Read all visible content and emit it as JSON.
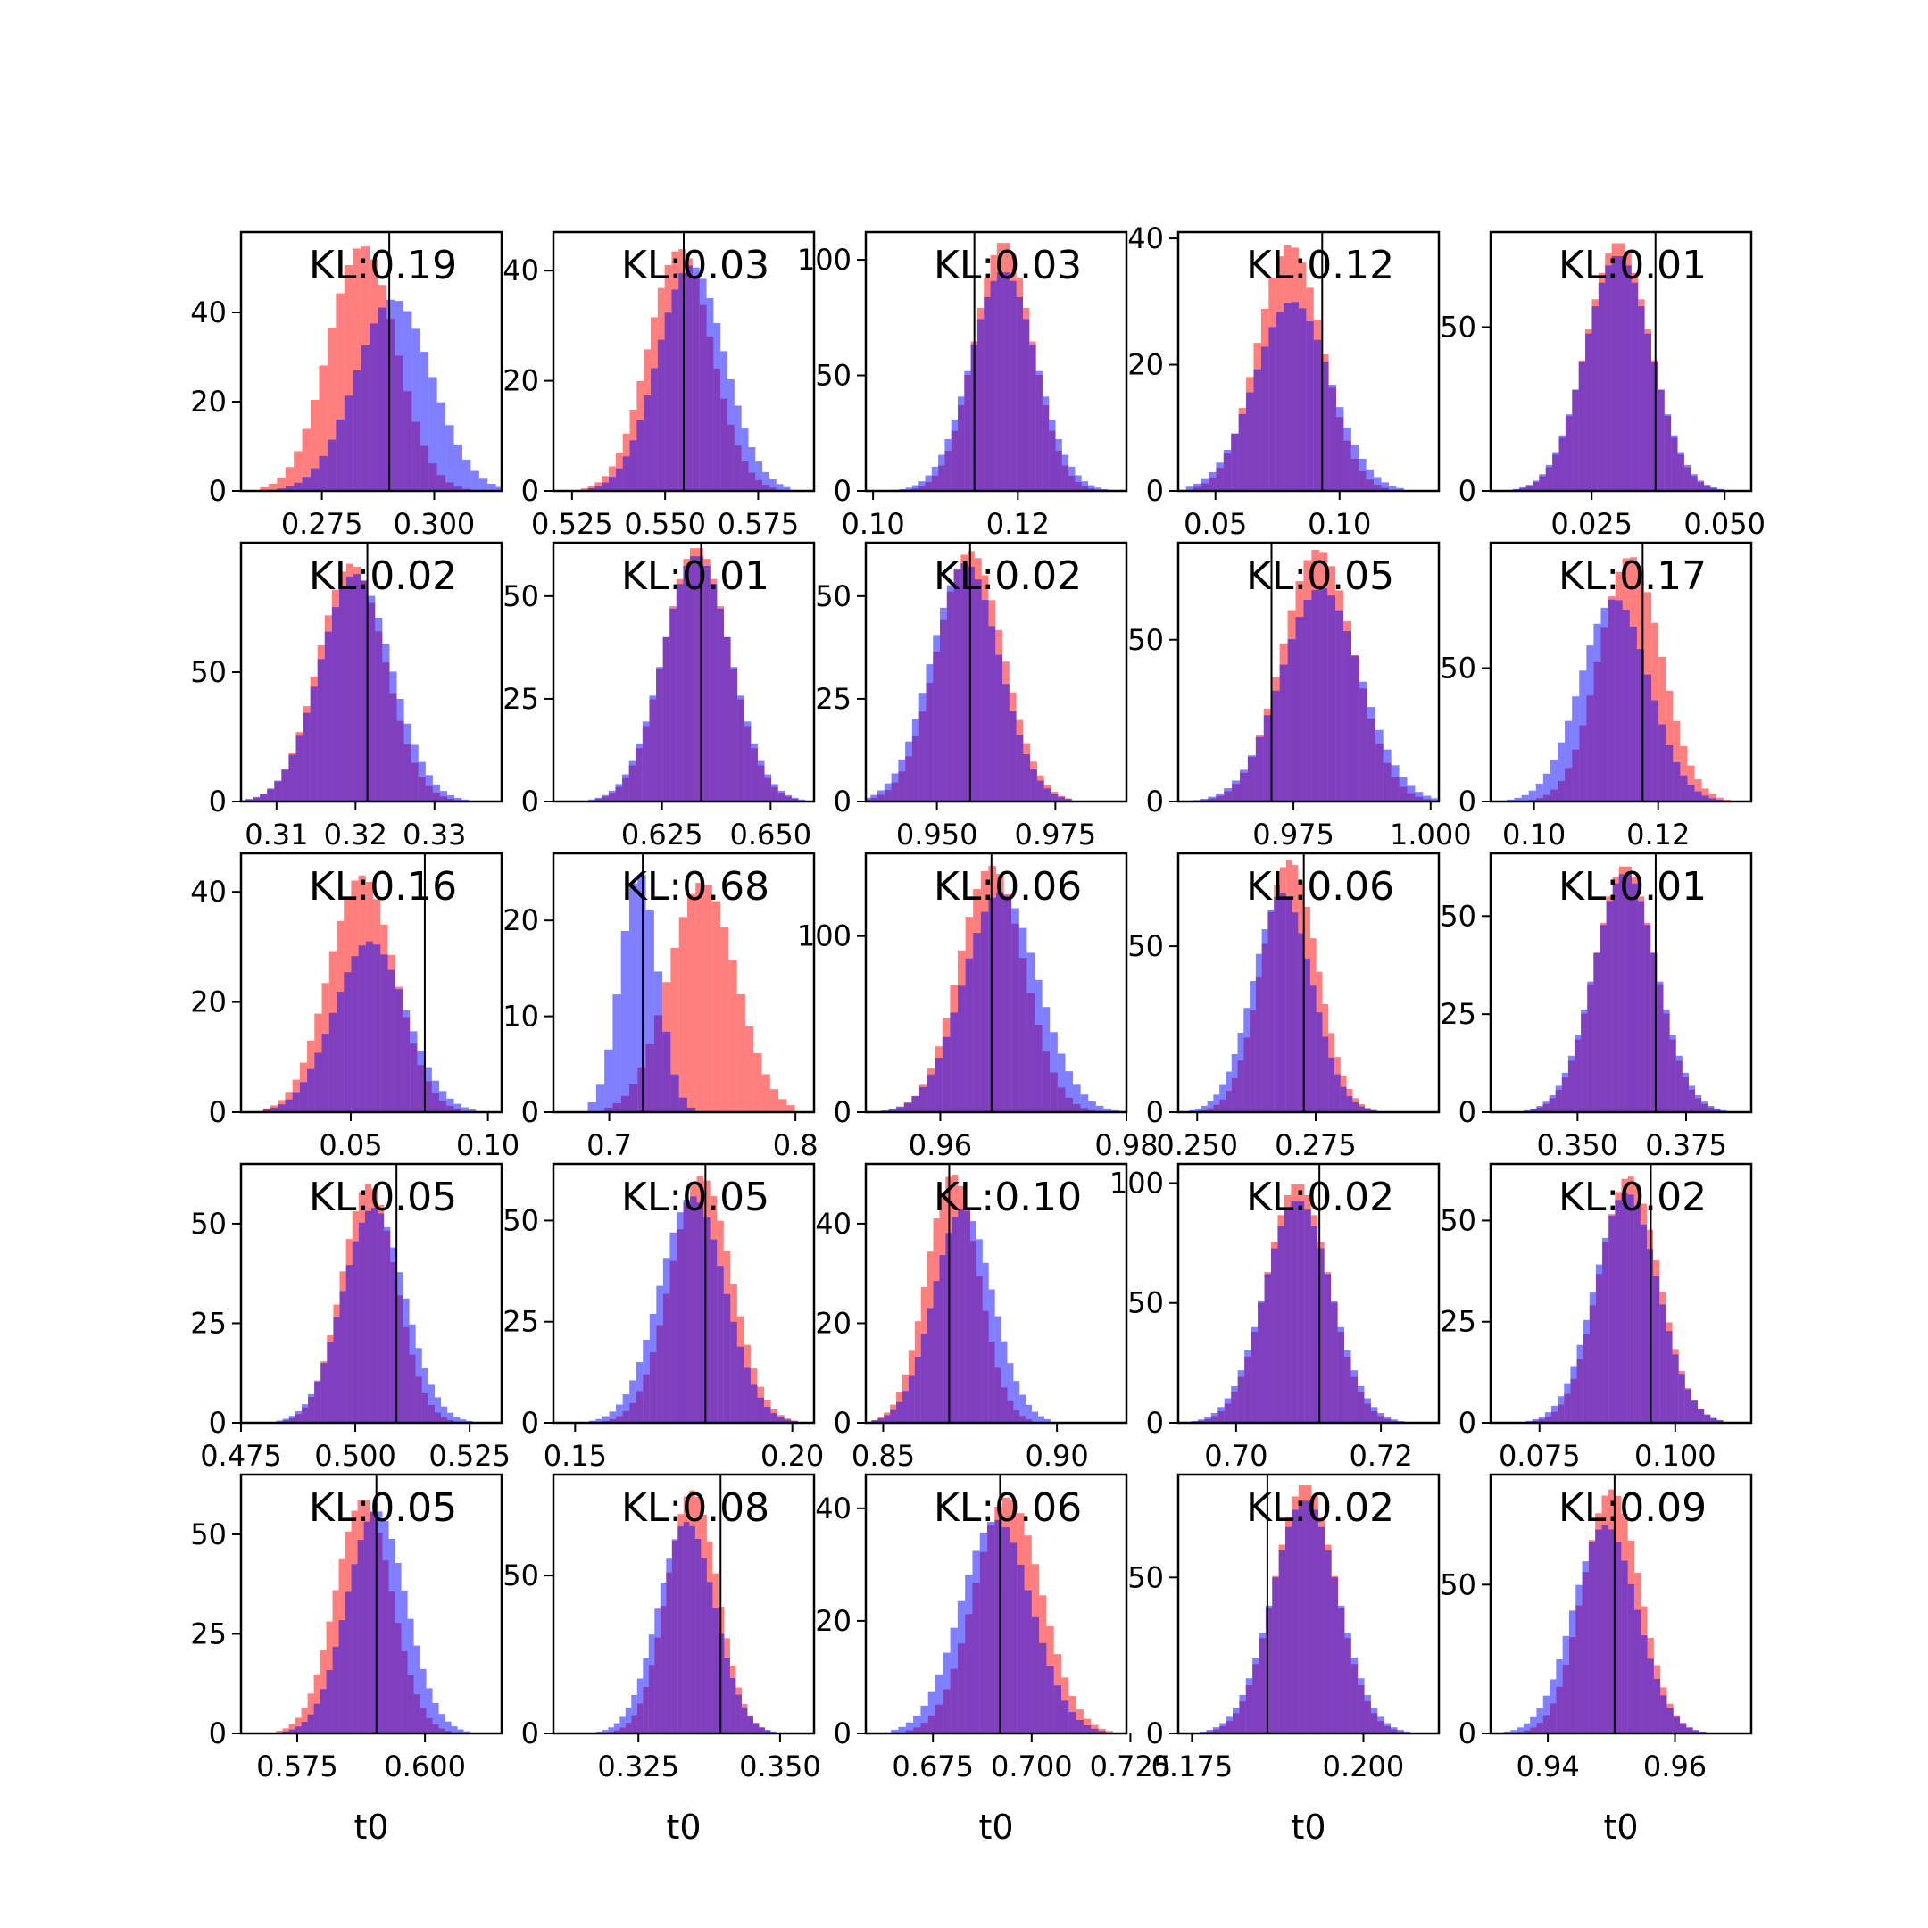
{
  "chart_data": {
    "type": "histogram-grid",
    "rows": 5,
    "cols": 5,
    "series_colors": {
      "red": "#ff0000",
      "blue": "#0000ff",
      "overlap": "#7f3fbf"
    },
    "truth_line_color": "#000000",
    "xlabel": "t0",
    "panels": [
      {
        "kl": "KL:0.19",
        "xlim": [
          0.257,
          0.315
        ],
        "xticks": [
          0.275,
          0.3
        ],
        "xtick_labels": [
          "0.275",
          "0.300"
        ],
        "ylim": [
          0,
          58
        ],
        "yticks": [
          0,
          20,
          40
        ],
        "truth": 0.29,
        "red": {
          "mean": 0.284,
          "sd": 0.0075,
          "peak": 55
        },
        "blue": {
          "mean": 0.291,
          "sd": 0.0085,
          "peak": 43
        }
      },
      {
        "kl": "KL:0.03",
        "xlim": [
          0.52,
          0.59
        ],
        "xticks": [
          0.525,
          0.55,
          0.575
        ],
        "xtick_labels": [
          "0.525",
          "0.550",
          "0.575"
        ],
        "ylim": [
          0,
          47
        ],
        "yticks": [
          0,
          20,
          40
        ],
        "truth": 0.555,
        "red": {
          "mean": 0.554,
          "sd": 0.0085,
          "peak": 44
        },
        "blue": {
          "mean": 0.557,
          "sd": 0.009,
          "peak": 41
        }
      },
      {
        "kl": "KL:0.03",
        "xlim": [
          0.099,
          0.135
        ],
        "xticks": [
          0.1,
          0.12
        ],
        "xtick_labels": [
          "0.10",
          "0.12"
        ],
        "ylim": [
          0,
          112
        ],
        "yticks": [
          0,
          50,
          100
        ],
        "truth": 0.114,
        "red": {
          "mean": 0.118,
          "sd": 0.004,
          "peak": 108
        },
        "blue": {
          "mean": 0.118,
          "sd": 0.0045,
          "peak": 95
        }
      },
      {
        "kl": "KL:0.12",
        "xlim": [
          0.035,
          0.14
        ],
        "xticks": [
          0.05,
          0.1
        ],
        "xtick_labels": [
          "0.05",
          "0.10"
        ],
        "ylim": [
          0,
          41
        ],
        "yticks": [
          0,
          20,
          40
        ],
        "truth": 0.093,
        "red": {
          "mean": 0.08,
          "sd": 0.013,
          "peak": 39
        },
        "blue": {
          "mean": 0.081,
          "sd": 0.015,
          "peak": 30
        }
      },
      {
        "kl": "KL:0.01",
        "xlim": [
          0.006,
          0.055
        ],
        "xticks": [
          0.025,
          0.05
        ],
        "xtick_labels": [
          "0.025",
          "0.050"
        ],
        "ylim": [
          0,
          79
        ],
        "yticks": [
          0,
          50
        ],
        "truth": 0.037,
        "red": {
          "mean": 0.03,
          "sd": 0.006,
          "peak": 76
        },
        "blue": {
          "mean": 0.03,
          "sd": 0.0062,
          "peak": 72
        }
      },
      {
        "kl": "KL:0.02",
        "xlim": [
          0.3055,
          0.3385
        ],
        "xticks": [
          0.31,
          0.32,
          0.33
        ],
        "xtick_labels": [
          "0.31",
          "0.32",
          "0.33"
        ],
        "ylim": [
          0,
          100
        ],
        "yticks": [
          0,
          50
        ],
        "truth": 0.3215,
        "red": {
          "mean": 0.3195,
          "sd": 0.0042,
          "peak": 92
        },
        "blue": {
          "mean": 0.32,
          "sd": 0.0045,
          "peak": 88
        }
      },
      {
        "kl": "KL:0.01",
        "xlim": [
          0.6,
          0.66
        ],
        "xticks": [
          0.625,
          0.65
        ],
        "xtick_labels": [
          "0.625",
          "0.650"
        ],
        "ylim": [
          0,
          63
        ],
        "yticks": [
          0,
          25,
          50
        ],
        "truth": 0.634,
        "red": {
          "mean": 0.633,
          "sd": 0.0075,
          "peak": 62
        },
        "blue": {
          "mean": 0.633,
          "sd": 0.0078,
          "peak": 60
        }
      },
      {
        "kl": "KL:0.02",
        "xlim": [
          0.935,
          0.99
        ],
        "xticks": [
          0.95,
          0.975
        ],
        "xtick_labels": [
          "0.950",
          "0.975"
        ],
        "ylim": [
          0,
          63
        ],
        "yticks": [
          0,
          25,
          50
        ],
        "truth": 0.957,
        "red": {
          "mean": 0.957,
          "sd": 0.007,
          "peak": 61
        },
        "blue": {
          "mean": 0.956,
          "sd": 0.0072,
          "peak": 58
        }
      },
      {
        "kl": "KL:0.05",
        "xlim": [
          0.954,
          1.0015
        ],
        "xticks": [
          0.975,
          1.0
        ],
        "xtick_labels": [
          "0.975",
          "1.000"
        ],
        "ylim": [
          0,
          80
        ],
        "yticks": [
          0,
          50
        ],
        "truth": 0.971,
        "red": {
          "mean": 0.9795,
          "sd": 0.0065,
          "peak": 78
        },
        "blue": {
          "mean": 0.98,
          "sd": 0.0072,
          "peak": 66
        }
      },
      {
        "kl": "KL:0.17",
        "xlim": [
          0.093,
          0.135
        ],
        "xticks": [
          0.1,
          0.12
        ],
        "xtick_labels": [
          "0.10",
          "0.12"
        ],
        "ylim": [
          0,
          97
        ],
        "yticks": [
          0,
          50
        ],
        "truth": 0.1175,
        "red": {
          "mean": 0.1155,
          "sd": 0.005,
          "peak": 92
        },
        "blue": {
          "mean": 0.113,
          "sd": 0.0055,
          "peak": 76
        }
      },
      {
        "kl": "KL:0.16",
        "xlim": [
          0.01,
          0.105
        ],
        "xticks": [
          0.05,
          0.1
        ],
        "xtick_labels": [
          "0.05",
          "0.10"
        ],
        "ylim": [
          0,
          47
        ],
        "yticks": [
          0,
          20,
          40
        ],
        "truth": 0.077,
        "red": {
          "mean": 0.054,
          "sd": 0.012,
          "peak": 43
        },
        "blue": {
          "mean": 0.057,
          "sd": 0.013,
          "peak": 31
        }
      },
      {
        "kl": "KL:0.68",
        "xlim": [
          0.67,
          0.81
        ],
        "xticks": [
          0.7,
          0.8
        ],
        "xtick_labels": [
          "0.7",
          "0.8"
        ],
        "ylim": [
          0,
          27
        ],
        "yticks": [
          0,
          10,
          20
        ],
        "truth": 0.718,
        "red": {
          "mean": 0.75,
          "sd": 0.018,
          "peak": 24
        },
        "blue": {
          "mean": 0.716,
          "sd": 0.01,
          "peak": 25
        }
      },
      {
        "kl": "KL:0.06",
        "xlim": [
          0.952,
          0.98
        ],
        "xticks": [
          0.96,
          0.98
        ],
        "xtick_labels": [
          "0.96",
          "0.98"
        ],
        "ylim": [
          0,
          147
        ],
        "yticks": [
          0,
          100
        ],
        "truth": 0.9655,
        "red": {
          "mean": 0.9655,
          "sd": 0.0035,
          "peak": 140
        },
        "blue": {
          "mean": 0.9665,
          "sd": 0.004,
          "peak": 125
        }
      },
      {
        "kl": "KL:0.06",
        "xlim": [
          0.246,
          0.301
        ],
        "xticks": [
          0.25,
          0.275
        ],
        "xtick_labels": [
          "0.250",
          "0.275"
        ],
        "ylim": [
          0,
          78
        ],
        "yticks": [
          0,
          50
        ],
        "truth": 0.2725,
        "red": {
          "mean": 0.2695,
          "sd": 0.0058,
          "peak": 76
        },
        "blue": {
          "mean": 0.268,
          "sd": 0.0062,
          "peak": 66
        }
      },
      {
        "kl": "KL:0.01",
        "xlim": [
          0.33,
          0.39
        ],
        "xticks": [
          0.35,
          0.375
        ],
        "xtick_labels": [
          "0.350",
          "0.375"
        ],
        "ylim": [
          0,
          66
        ],
        "yticks": [
          0,
          25,
          50
        ],
        "truth": 0.368,
        "red": {
          "mean": 0.361,
          "sd": 0.007,
          "peak": 63
        },
        "blue": {
          "mean": 0.361,
          "sd": 0.0073,
          "peak": 61
        }
      },
      {
        "kl": "KL:0.05",
        "xlim": [
          0.475,
          0.532
        ],
        "xticks": [
          0.475,
          0.5,
          0.525
        ],
        "xtick_labels": [
          "0.475",
          "0.500",
          "0.525"
        ],
        "ylim": [
          0,
          65
        ],
        "yticks": [
          0,
          25,
          50
        ],
        "truth": 0.509,
        "red": {
          "mean": 0.503,
          "sd": 0.006,
          "peak": 60
        },
        "blue": {
          "mean": 0.504,
          "sd": 0.0068,
          "peak": 54
        }
      },
      {
        "kl": "KL:0.05",
        "xlim": [
          0.145,
          0.205
        ],
        "xticks": [
          0.15,
          0.2
        ],
        "xtick_labels": [
          "0.15",
          "0.20"
        ],
        "ylim": [
          0,
          64
        ],
        "yticks": [
          0,
          25,
          50
        ],
        "truth": 0.18,
        "red": {
          "mean": 0.179,
          "sd": 0.007,
          "peak": 61
        },
        "blue": {
          "mean": 0.177,
          "sd": 0.0075,
          "peak": 56
        }
      },
      {
        "kl": "KL:0.10",
        "xlim": [
          0.845,
          0.92
        ],
        "xticks": [
          0.85,
          0.9
        ],
        "xtick_labels": [
          "0.85",
          "0.90"
        ],
        "ylim": [
          0,
          52
        ],
        "yticks": [
          0,
          20,
          40
        ],
        "truth": 0.869,
        "red": {
          "mean": 0.87,
          "sd": 0.0075,
          "peak": 50
        },
        "blue": {
          "mean": 0.873,
          "sd": 0.0085,
          "peak": 43
        }
      },
      {
        "kl": "KL:0.02",
        "xlim": [
          0.692,
          0.728
        ],
        "xticks": [
          0.7,
          0.72
        ],
        "xtick_labels": [
          "0.70",
          "0.72"
        ],
        "ylim": [
          0,
          108
        ],
        "yticks": [
          0,
          50,
          100
        ],
        "truth": 0.7115,
        "red": {
          "mean": 0.7085,
          "sd": 0.0043,
          "peak": 100
        },
        "blue": {
          "mean": 0.7085,
          "sd": 0.0046,
          "peak": 93
        }
      },
      {
        "kl": "KL:0.02",
        "xlim": [
          0.066,
          0.114
        ],
        "xticks": [
          0.075,
          0.1
        ],
        "xtick_labels": [
          "0.075",
          "0.100"
        ],
        "ylim": [
          0,
          64
        ],
        "yticks": [
          0,
          25,
          50
        ],
        "truth": 0.0955,
        "red": {
          "mean": 0.0915,
          "sd": 0.0055,
          "peak": 61
        },
        "blue": {
          "mean": 0.091,
          "sd": 0.0058,
          "peak": 57
        }
      },
      {
        "kl": "KL:0.05",
        "xlim": [
          0.564,
          0.615
        ],
        "xticks": [
          0.575,
          0.6
        ],
        "xtick_labels": [
          "0.575",
          "0.600"
        ],
        "ylim": [
          0,
          65
        ],
        "yticks": [
          0,
          25,
          50
        ],
        "truth": 0.5905,
        "red": {
          "mean": 0.588,
          "sd": 0.0055,
          "peak": 59
        },
        "blue": {
          "mean": 0.5905,
          "sd": 0.0058,
          "peak": 56
        }
      },
      {
        "kl": "KL:0.08",
        "xlim": [
          0.31,
          0.356
        ],
        "xticks": [
          0.325,
          0.35
        ],
        "xtick_labels": [
          "0.325",
          "0.350"
        ],
        "ylim": [
          0,
          82
        ],
        "yticks": [
          0,
          50
        ],
        "truth": 0.3395,
        "red": {
          "mean": 0.3345,
          "sd": 0.0045,
          "peak": 77
        },
        "blue": {
          "mean": 0.3335,
          "sd": 0.005,
          "peak": 67
        }
      },
      {
        "kl": "KL:0.06",
        "xlim": [
          0.658,
          0.724
        ],
        "xticks": [
          0.675,
          0.7,
          0.725
        ],
        "xtick_labels": [
          "0.675",
          "0.700",
          "0.725"
        ],
        "ylim": [
          0,
          46
        ],
        "yticks": [
          0,
          20,
          40
        ],
        "truth": 0.692,
        "red": {
          "mean": 0.694,
          "sd": 0.0085,
          "peak": 42
        },
        "blue": {
          "mean": 0.691,
          "sd": 0.009,
          "peak": 38
        }
      },
      {
        "kl": "KL:0.02",
        "xlim": [
          0.173,
          0.211
        ],
        "xticks": [
          0.175,
          0.2
        ],
        "xtick_labels": [
          "0.175",
          "0.200"
        ],
        "ylim": [
          0,
          83
        ],
        "yticks": [
          0,
          50
        ],
        "truth": 0.186,
        "red": {
          "mean": 0.1915,
          "sd": 0.0045,
          "peak": 80
        },
        "blue": {
          "mean": 0.1915,
          "sd": 0.0048,
          "peak": 75
        }
      },
      {
        "kl": "KL:0.09",
        "xlim": [
          0.931,
          0.972
        ],
        "xticks": [
          0.94,
          0.96
        ],
        "xtick_labels": [
          "0.94",
          "0.96"
        ],
        "ylim": [
          0,
          87
        ],
        "yticks": [
          0,
          50
        ],
        "truth": 0.9505,
        "red": {
          "mean": 0.95,
          "sd": 0.0045,
          "peak": 82
        },
        "blue": {
          "mean": 0.949,
          "sd": 0.005,
          "peak": 70
        }
      }
    ]
  }
}
